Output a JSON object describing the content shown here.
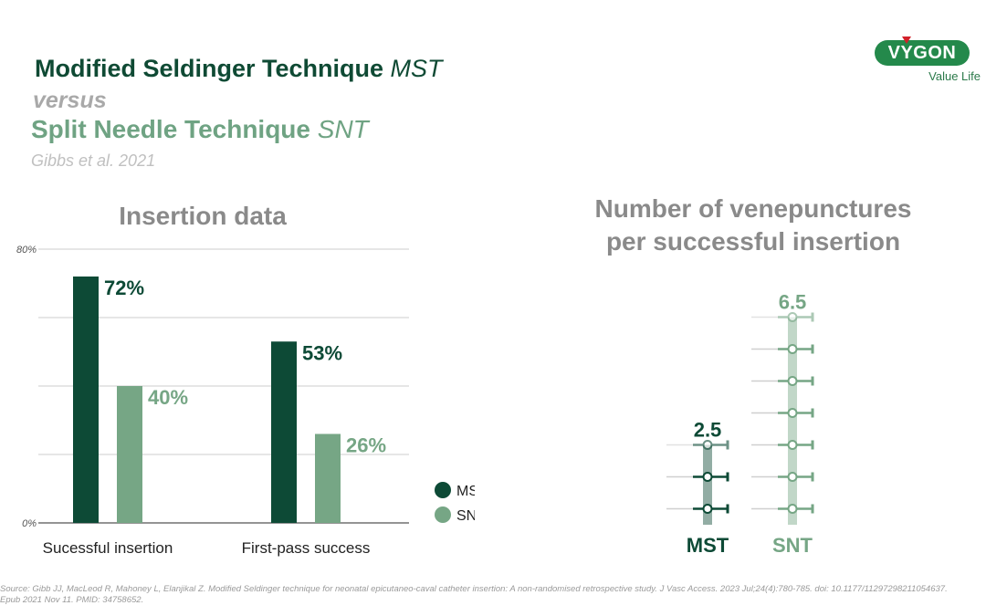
{
  "header": {
    "title_main": "Modified Seldinger Technique",
    "title_main_abbr": "MST",
    "versus": "versus",
    "title_second": "Split Needle Technique",
    "title_second_abbr": "SNT",
    "citation": "Gibbs et al. 2021"
  },
  "logo": {
    "name": "VYGON",
    "tagline": "Value Life",
    "colors": {
      "pill": "#24894b",
      "mark": "#d3212a"
    }
  },
  "colors": {
    "mst": "#0d4a36",
    "snt": "#76a685",
    "title_grey": "#8a8a8a"
  },
  "chart_data": [
    {
      "type": "bar",
      "title": "Insertion data",
      "categories": [
        "Sucessful insertion",
        "First-pass success"
      ],
      "series": [
        {
          "name": "MST",
          "values": [
            72,
            53
          ],
          "labels": [
            "72%",
            "53%"
          ]
        },
        {
          "name": "SNT",
          "values": [
            40,
            26
          ],
          "labels": [
            "40%",
            "26%"
          ]
        }
      ],
      "ylim": [
        0,
        80
      ],
      "yticks": [
        0,
        20,
        40,
        60,
        80
      ],
      "ytick_labels": [
        "0%",
        "",
        "",
        "",
        "80%"
      ],
      "grid": true,
      "legend": {
        "placement": "bottom-right",
        "entries": [
          "MST",
          "SNT"
        ]
      }
    },
    {
      "type": "bar",
      "title": "Number of venepunctures per successful insertion",
      "categories": [
        "MST",
        "SNT"
      ],
      "values": [
        2.5,
        6.5
      ],
      "labels": [
        "2.5",
        "6.5"
      ],
      "icon": "syringe-icon"
    }
  ],
  "source": "Source: Gibb JJ, MacLeod R, Mahoney L, Elanjikal Z. Modified Seldinger technique for neonatal epicutaneo-caval catheter insertion: A non-randomised retrospective study. J Vasc Access. 2023 Jul;24(4):780-785. doi: 10.1177/11297298211054637. Epub 2021 Nov 11. PMID: 34758652."
}
